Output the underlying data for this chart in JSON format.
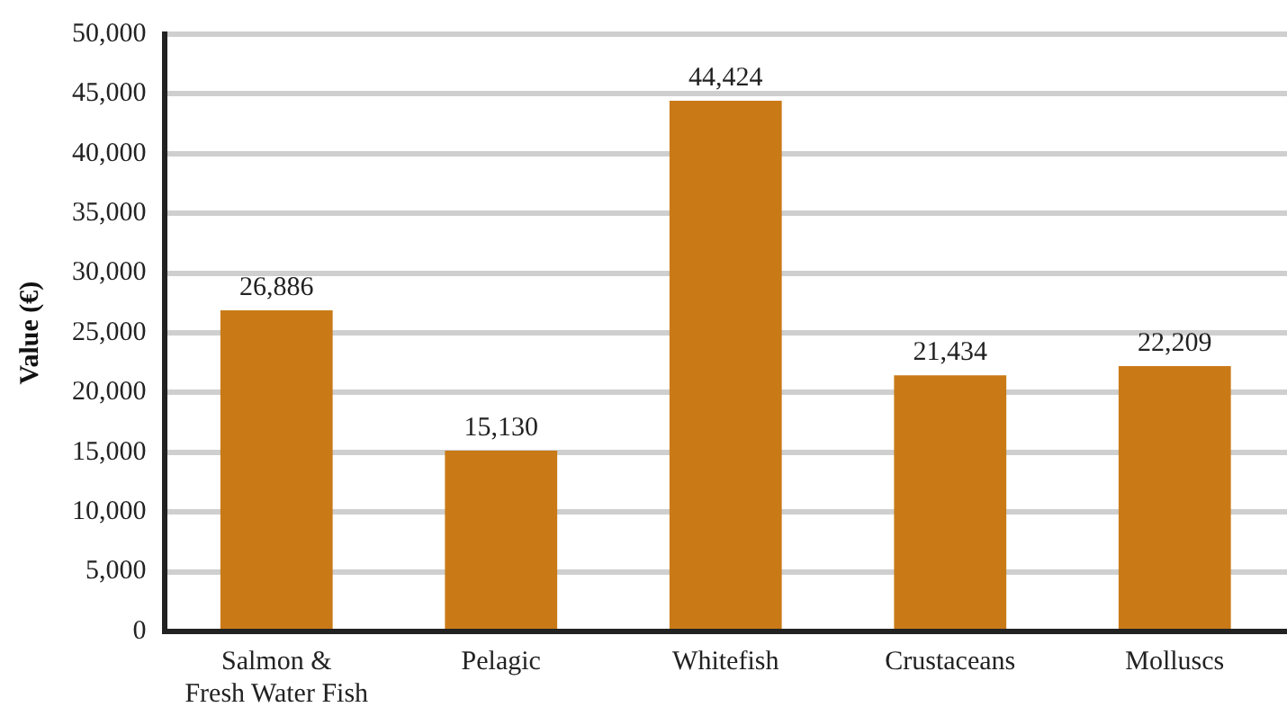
{
  "chart_data": {
    "type": "bar",
    "ylabel": "Value (€)",
    "categories": [
      "Salmon & Fresh Water Fish",
      "Pelagic",
      "Whitefish",
      "Crustaceans",
      "Molluscs"
    ],
    "values": [
      26886,
      15130,
      44424,
      21434,
      22209
    ],
    "color": "#c97a17",
    "value_labels": [
      "26,886",
      "15,130",
      "44,424",
      "21,434",
      "22,209"
    ],
    "ylim": [
      0,
      50000
    ],
    "yticks": [
      0,
      {
        "value": 5000,
        "label": "5,000"
      },
      {
        "value": 10000,
        "label": "10,000"
      },
      {
        "value": 15000,
        "label": "15,000"
      },
      {
        "value": 20000,
        "label": "20,000"
      },
      {
        "value": 25000,
        "label": "25,000"
      },
      {
        "value": 30000,
        "label": "30,000"
      },
      {
        "value": 35000,
        "label": "35,000"
      },
      {
        "value": 40000,
        "label": "40,000"
      },
      {
        "value": 45000,
        "label": "45,000"
      },
      {
        "value": 50000,
        "label": "50,000"
      }
    ],
    "grid": "y",
    "legend": false
  }
}
